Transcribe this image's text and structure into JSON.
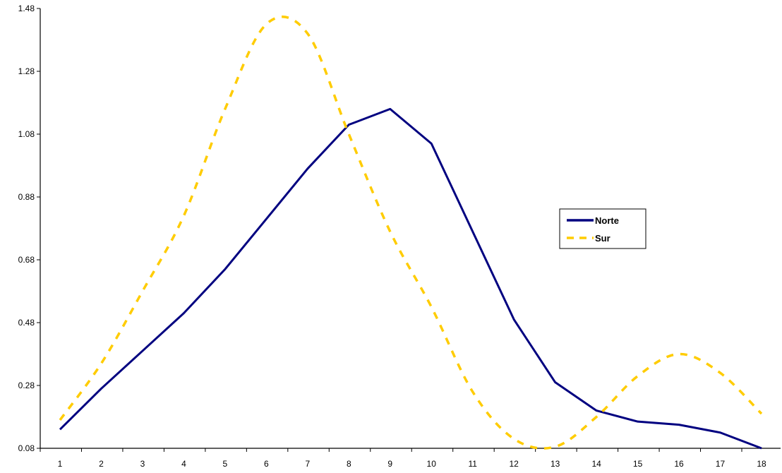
{
  "chart_data": {
    "type": "line",
    "x": [
      1,
      2,
      3,
      4,
      5,
      6,
      7,
      8,
      9,
      10,
      11,
      12,
      13,
      14,
      15,
      16,
      17,
      18
    ],
    "series": [
      {
        "name": "Norte",
        "color": "#000080",
        "style": "solid",
        "values": [
          0.14,
          0.27,
          0.39,
          0.51,
          0.65,
          0.81,
          0.97,
          1.11,
          1.16,
          1.05,
          0.77,
          0.49,
          0.29,
          0.2,
          0.165,
          0.155,
          0.13,
          0.08
        ]
      },
      {
        "name": "Sur",
        "color": "#FFCC00",
        "style": "dashed",
        "values": [
          0.17,
          0.35,
          0.58,
          0.82,
          1.16,
          1.43,
          1.4,
          1.08,
          0.77,
          0.53,
          0.26,
          0.11,
          0.085,
          0.18,
          0.31,
          0.38,
          0.32,
          0.19
        ]
      }
    ],
    "y_ticks": [
      "0.08",
      "0.28",
      "0.48",
      "0.68",
      "0.88",
      "1.08",
      "1.28",
      "1.48"
    ],
    "x_ticks": [
      "1",
      "2",
      "3",
      "4",
      "5",
      "6",
      "7",
      "8",
      "9",
      "10",
      "11",
      "12",
      "13",
      "14",
      "15",
      "16",
      "17",
      "18"
    ],
    "ylim": [
      0.08,
      1.48
    ],
    "xlim": [
      1,
      18
    ],
    "grid": false,
    "legend_position": "right"
  }
}
